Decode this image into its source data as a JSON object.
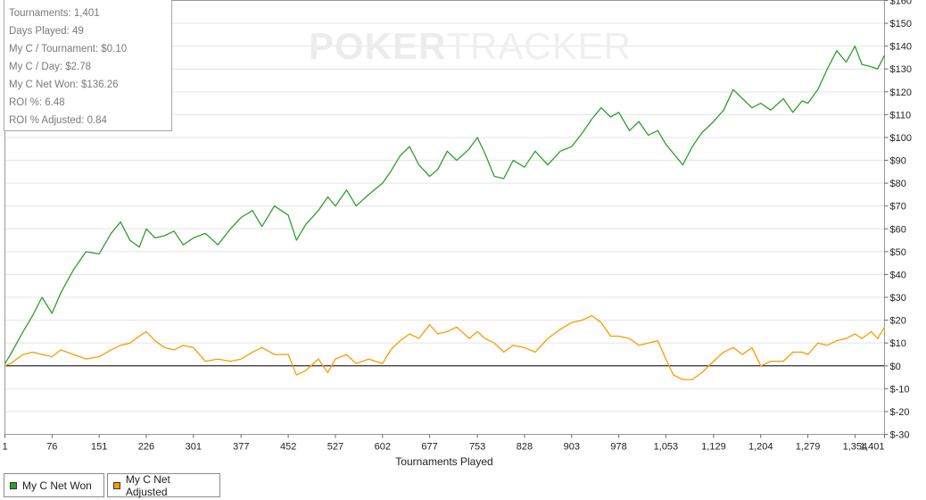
{
  "watermark": {
    "brand_strong": "POKER",
    "brand_light": "TRACKER"
  },
  "stats": [
    "Tournaments: 1,401",
    "Days Played: 49",
    "My C / Tournament: $0.10",
    "My C / Day: $2.78",
    "My C Net Won: $136.26",
    "ROI %: 6.48",
    "ROI % Adjusted: 0.84"
  ],
  "legend": [
    {
      "label": "My C Net Won",
      "color": "#2ca02c"
    },
    {
      "label": "My C Net Adjusted",
      "color": "#ff9900"
    }
  ],
  "chart_data": {
    "type": "line",
    "xlabel": "Tournaments Played",
    "ylabel": "",
    "xlim": [
      1,
      1401
    ],
    "ylim": [
      -30,
      160
    ],
    "y_step": 10,
    "x_ticks": [
      "1",
      "76",
      "151",
      "226",
      "301",
      "377",
      "452",
      "527",
      "602",
      "677",
      "753",
      "828",
      "903",
      "978",
      "1,053",
      "1,129",
      "1,204",
      "1,279",
      "1,354",
      "1,401"
    ],
    "y_ticks": [
      "$160",
      "$150",
      "$140",
      "$130",
      "$120",
      "$110",
      "$100",
      "$90",
      "$80",
      "$70",
      "$60",
      "$50",
      "$40",
      "$30",
      "$20",
      "$10",
      "$0",
      "$-10",
      "$-20",
      "$-30"
    ],
    "grid": "horizontal",
    "zero_line": true,
    "legend_position": "bottom-left",
    "series": [
      {
        "name": "My C Net Won",
        "color": "#2ca02c",
        "x": [
          1,
          10,
          30,
          45,
          60,
          76,
          90,
          110,
          130,
          151,
          170,
          185,
          200,
          215,
          226,
          240,
          255,
          270,
          285,
          301,
          320,
          340,
          360,
          377,
          395,
          410,
          430,
          452,
          465,
          480,
          500,
          515,
          527,
          545,
          560,
          580,
          602,
          615,
          630,
          645,
          660,
          677,
          690,
          705,
          720,
          740,
          753,
          765,
          780,
          795,
          810,
          828,
          845,
          865,
          885,
          903,
          920,
          935,
          950,
          965,
          978,
          995,
          1010,
          1025,
          1040,
          1053,
          1065,
          1080,
          1095,
          1110,
          1129,
          1145,
          1160,
          1175,
          1190,
          1204,
          1220,
          1240,
          1255,
          1270,
          1279,
          1295,
          1310,
          1325,
          1340,
          1354,
          1365,
          1380,
          1390,
          1401
        ],
        "y": [
          1,
          5,
          15,
          22,
          30,
          23,
          32,
          42,
          50,
          49,
          58,
          63,
          55,
          52,
          60,
          56,
          57,
          59,
          53,
          56,
          58,
          53,
          60,
          65,
          68,
          61,
          70,
          66,
          55,
          62,
          68,
          74,
          70,
          77,
          70,
          75,
          80,
          85,
          92,
          96,
          88,
          83,
          86,
          94,
          90,
          95,
          100,
          93,
          83,
          82,
          90,
          87,
          94,
          88,
          94,
          96,
          102,
          108,
          113,
          109,
          111,
          103,
          107,
          101,
          103,
          97,
          93,
          88,
          96,
          102,
          107,
          112,
          121,
          117,
          113,
          115,
          112,
          117,
          111,
          116,
          115,
          121,
          130,
          138,
          133,
          140,
          132,
          131,
          130,
          136
        ]
      },
      {
        "name": "My C Net Adjusted",
        "color": "#ff9900",
        "x": [
          1,
          10,
          30,
          45,
          60,
          76,
          90,
          110,
          130,
          151,
          170,
          185,
          200,
          215,
          226,
          240,
          255,
          270,
          285,
          301,
          320,
          340,
          360,
          377,
          395,
          410,
          430,
          452,
          465,
          480,
          500,
          515,
          527,
          545,
          560,
          580,
          602,
          615,
          630,
          645,
          660,
          677,
          690,
          705,
          720,
          740,
          753,
          765,
          780,
          795,
          810,
          828,
          845,
          865,
          885,
          903,
          920,
          935,
          950,
          965,
          978,
          995,
          1010,
          1025,
          1040,
          1053,
          1065,
          1080,
          1095,
          1110,
          1129,
          1145,
          1160,
          1175,
          1190,
          1204,
          1220,
          1240,
          1255,
          1270,
          1279,
          1295,
          1310,
          1325,
          1340,
          1354,
          1365,
          1380,
          1390,
          1401
        ],
        "y": [
          0,
          1,
          5,
          6,
          5,
          4,
          7,
          5,
          3,
          4,
          7,
          9,
          10,
          13,
          15,
          11,
          8,
          7,
          9,
          8,
          2,
          3,
          2,
          3,
          6,
          8,
          5,
          5,
          -4,
          -2,
          3,
          -3,
          3,
          5,
          1,
          3,
          1,
          7,
          11,
          14,
          12,
          18,
          14,
          15,
          17,
          12,
          15,
          12,
          10,
          6,
          9,
          8,
          6,
          12,
          16,
          19,
          20,
          22,
          19,
          13,
          13,
          12,
          9,
          10,
          11,
          3,
          -4,
          -6,
          -6,
          -3,
          2,
          6,
          8,
          5,
          8,
          0,
          2,
          2,
          6,
          6,
          5,
          10,
          9,
          11,
          12,
          14,
          12,
          15,
          12,
          17
        ]
      }
    ]
  }
}
